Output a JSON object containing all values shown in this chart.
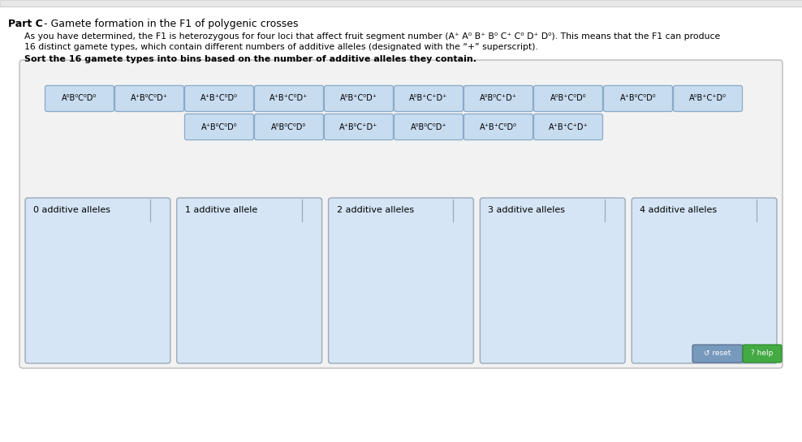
{
  "page_bg": "#FFFFFF",
  "outer_bg": "#F2F2F2",
  "outer_border": "#BBBBBB",
  "card_bg": "#C8DCF0",
  "card_border": "#8AAAC8",
  "bin_bg": "#D5E5F5",
  "bin_border": "#9AAABB",
  "top_bar_bg": "#E8E8E8",
  "top_bar_border": "#CCCCCC",
  "bin_labels": [
    "0 additive alleles",
    "1 additive allele",
    "2 additive alleles",
    "3 additive alleles",
    "4 additive alleles"
  ],
  "reset_bg": "#7799BB",
  "help_bg": "#44AA44",
  "gametes_row1": [
    [
      "A",
      "0",
      "B",
      "0",
      "C",
      "0",
      "D",
      "0"
    ],
    [
      "A",
      "+",
      "B",
      "0",
      "C",
      "0",
      "D",
      "+"
    ],
    [
      "A",
      "+",
      "B",
      "+",
      "C",
      "0",
      "D",
      "0"
    ],
    [
      "A",
      "+",
      "B",
      "+",
      "C",
      "0",
      "D",
      "+"
    ],
    [
      "A",
      "0",
      "B",
      "+",
      "C",
      "0",
      "D",
      "+"
    ],
    [
      "A",
      "0",
      "B",
      "+",
      "C",
      "+",
      "D",
      "+"
    ],
    [
      "A",
      "0",
      "B",
      "0",
      "C",
      "+",
      "D",
      "+"
    ],
    [
      "A",
      "0",
      "B",
      "+",
      "C",
      "0",
      "D",
      "0"
    ],
    [
      "A",
      "+",
      "B",
      "0",
      "C",
      "0",
      "D",
      "0"
    ],
    [
      "A",
      "0",
      "B",
      "+",
      "C",
      "+",
      "D",
      "0"
    ]
  ],
  "gametes_row2": [
    [
      "A",
      "+",
      "B",
      "0",
      "C",
      "0",
      "D",
      "0"
    ],
    [
      "A",
      "0",
      "B",
      "0",
      "C",
      "0",
      "D",
      "0"
    ],
    [
      "A",
      "+",
      "B",
      "0",
      "C",
      "+",
      "D",
      "+"
    ],
    [
      "A",
      "0",
      "B",
      "0",
      "C",
      "0",
      "D",
      "+"
    ],
    [
      "A",
      "+",
      "B",
      "+",
      "C",
      "0",
      "D",
      "0"
    ],
    [
      "A",
      "+",
      "B",
      "+",
      "C",
      "+",
      "D",
      "+"
    ]
  ]
}
